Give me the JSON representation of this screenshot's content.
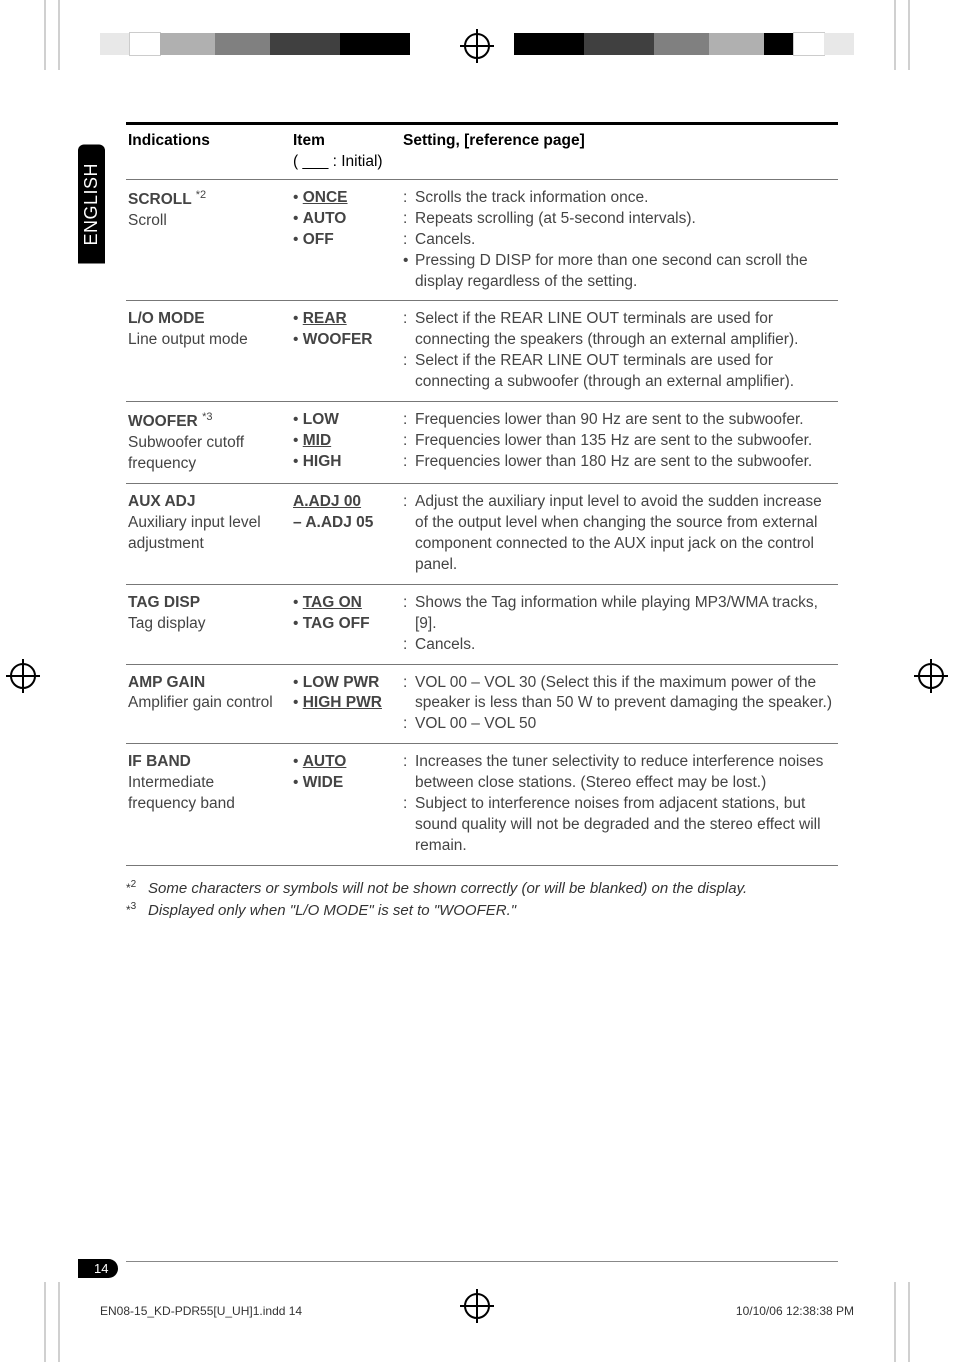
{
  "lang_tab": "ENGLISH",
  "page_number": "14",
  "footer_left": "EN08-15_KD-PDR55[U_UH]1.indd   14",
  "footer_right": "10/10/06   12:38:38 PM",
  "headers": {
    "col1": "Indications",
    "col2": "Item",
    "col2_sub": "( ___ : Initial)",
    "col3": "Setting, [reference page]"
  },
  "rows": [
    {
      "id": "scroll",
      "title": "SCROLL",
      "sup": "*2",
      "sub": "Scroll",
      "items": [
        {
          "u": true,
          "b": true,
          "text": "ONCE"
        },
        {
          "u": false,
          "b": true,
          "text": "AUTO"
        },
        {
          "u": false,
          "b": true,
          "text": "OFF"
        }
      ],
      "settings": [
        {
          "colon": ":",
          "text": "Scrolls the track information once."
        },
        {
          "colon": ":",
          "text": "Repeats scrolling (at 5-second intervals)."
        },
        {
          "colon": ":",
          "text": "Cancels."
        },
        {
          "colon": "•",
          "text": "Pressing D DISP for more than one second can scroll the display regardless of the setting."
        }
      ]
    },
    {
      "id": "lomode",
      "title": "L/O MODE",
      "sup": "",
      "sub": "Line output mode",
      "items": [
        {
          "u": true,
          "b": true,
          "text": "REAR"
        },
        {
          "u": false,
          "b": true,
          "text": "WOOFER"
        }
      ],
      "settings": [
        {
          "colon": ":",
          "text": "Select if the REAR LINE OUT terminals are used for connecting the speakers (through an external amplifier)."
        },
        {
          "colon": ":",
          "text": "Select if the REAR LINE OUT terminals are used for connecting a subwoofer (through an external amplifier)."
        }
      ]
    },
    {
      "id": "woofer",
      "title": "WOOFER",
      "sup": "*3",
      "sub": "Subwoofer cutoff frequency",
      "items": [
        {
          "u": false,
          "b": true,
          "text": "LOW"
        },
        {
          "u": true,
          "b": true,
          "text": "MID"
        },
        {
          "u": false,
          "b": true,
          "text": "HIGH"
        }
      ],
      "settings": [
        {
          "colon": ":",
          "text": "Frequencies lower than 90 Hz are sent to the subwoofer."
        },
        {
          "colon": ":",
          "text": "Frequencies lower than 135 Hz are sent to the subwoofer."
        },
        {
          "colon": ":",
          "text": "Frequencies lower than 180 Hz are sent to the subwoofer."
        }
      ]
    },
    {
      "id": "auxadj",
      "title": "AUX ADJ",
      "sup": "",
      "sub": "Auxiliary input level adjustment",
      "items_raw": "A.ADJ 00 – A.ADJ 05",
      "items_underline_first": true,
      "settings": [
        {
          "colon": ":",
          "text": "Adjust the auxiliary input level to avoid the sudden increase of the output level when changing the source from external component connected to the AUX input jack on the control panel."
        }
      ]
    },
    {
      "id": "tagdisp",
      "title": "TAG DISP",
      "sup": "",
      "sub": "Tag display",
      "items": [
        {
          "u": true,
          "b": true,
          "text": "TAG ON"
        },
        {
          "u": false,
          "b": true,
          "text": "TAG OFF"
        }
      ],
      "settings": [
        {
          "colon": ":",
          "text": "Shows the Tag information while playing MP3/WMA tracks, [9]."
        },
        {
          "colon": ":",
          "text": "Cancels."
        }
      ]
    },
    {
      "id": "ampgain",
      "title": "AMP GAIN",
      "sup": "",
      "sub": "Amplifier gain control",
      "items": [
        {
          "u": false,
          "b": true,
          "text": "LOW PWR"
        },
        {
          "u": true,
          "b": true,
          "text": "HIGH PWR"
        }
      ],
      "settings": [
        {
          "colon": ":",
          "text": "VOL 00 – VOL 30 (Select this if the maximum power of the speaker is less than 50 W to prevent damaging the speaker.)"
        },
        {
          "colon": ":",
          "text": "VOL 00 – VOL 50"
        }
      ]
    },
    {
      "id": "ifband",
      "title": "IF BAND",
      "sup": "",
      "sub": "Intermediate frequency band",
      "items": [
        {
          "u": true,
          "b": true,
          "text": "AUTO"
        },
        {
          "u": false,
          "b": true,
          "text": "WIDE"
        }
      ],
      "settings": [
        {
          "colon": ":",
          "text": "Increases the tuner selectivity to reduce interference noises between close stations. (Stereo effect may be lost.)"
        },
        {
          "colon": ":",
          "text": "Subject to interference noises from adjacent stations, but sound quality will not be degraded and the stereo effect will remain."
        }
      ]
    }
  ],
  "footnotes": [
    {
      "mark": "*2",
      "text": "Some characters or symbols will not be shown correctly (or will be blanked) on the display."
    },
    {
      "mark": "*3",
      "text": "Displayed only when \"L/O MODE\" is set to \"WOOFER.\""
    }
  ],
  "bands": {
    "left": [
      "#000000",
      "#404040",
      "#808080",
      "#b0b0b0",
      "#ffffff",
      "#e8e8e8"
    ],
    "right": [
      "#000000",
      "#404040",
      "#808080",
      "#b0b0b0",
      "#000000",
      "#ffffff",
      "#e8e8e8"
    ],
    "w_big": 70,
    "w_sm": 30,
    "w_tiny": 22
  }
}
